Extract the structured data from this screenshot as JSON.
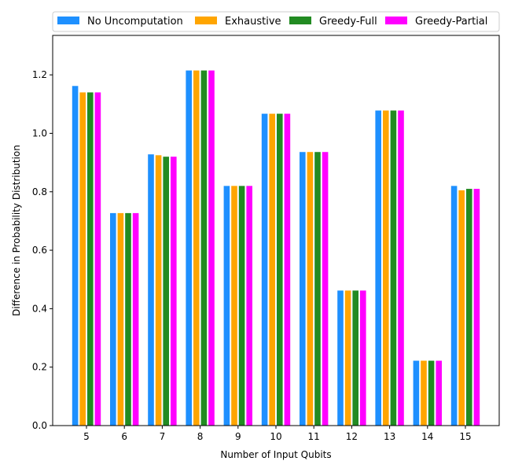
{
  "chart_data": {
    "type": "bar",
    "title": "",
    "xlabel": "Number of Input Qubits",
    "ylabel": "Difference in Probability Distribution",
    "categories": [
      "5",
      "6",
      "7",
      "8",
      "9",
      "10",
      "11",
      "12",
      "13",
      "14",
      "15"
    ],
    "series": [
      {
        "name": "No Uncomputation",
        "color": "#1e90ff",
        "values": [
          1.162,
          0.727,
          0.928,
          1.215,
          0.82,
          1.067,
          0.936,
          0.462,
          1.078,
          0.222,
          0.82
        ]
      },
      {
        "name": "Exhaustive",
        "color": "#ffa500",
        "values": [
          1.14,
          0.727,
          0.925,
          1.215,
          0.82,
          1.067,
          0.936,
          0.462,
          1.078,
          0.222,
          0.805
        ]
      },
      {
        "name": "Greedy-Full",
        "color": "#228b22",
        "values": [
          1.14,
          0.727,
          0.92,
          1.215,
          0.82,
          1.067,
          0.936,
          0.462,
          1.078,
          0.222,
          0.81
        ]
      },
      {
        "name": "Greedy-Partial",
        "color": "#ff00ff",
        "values": [
          1.14,
          0.727,
          0.92,
          1.215,
          0.82,
          1.067,
          0.936,
          0.462,
          1.078,
          0.222,
          0.81
        ]
      }
    ],
    "ylim": [
      0,
      1.335
    ],
    "yticks": [
      "0.0",
      "0.2",
      "0.4",
      "0.6",
      "0.8",
      "1.0",
      "1.2"
    ],
    "grid": false,
    "legend_position": "top-center"
  }
}
